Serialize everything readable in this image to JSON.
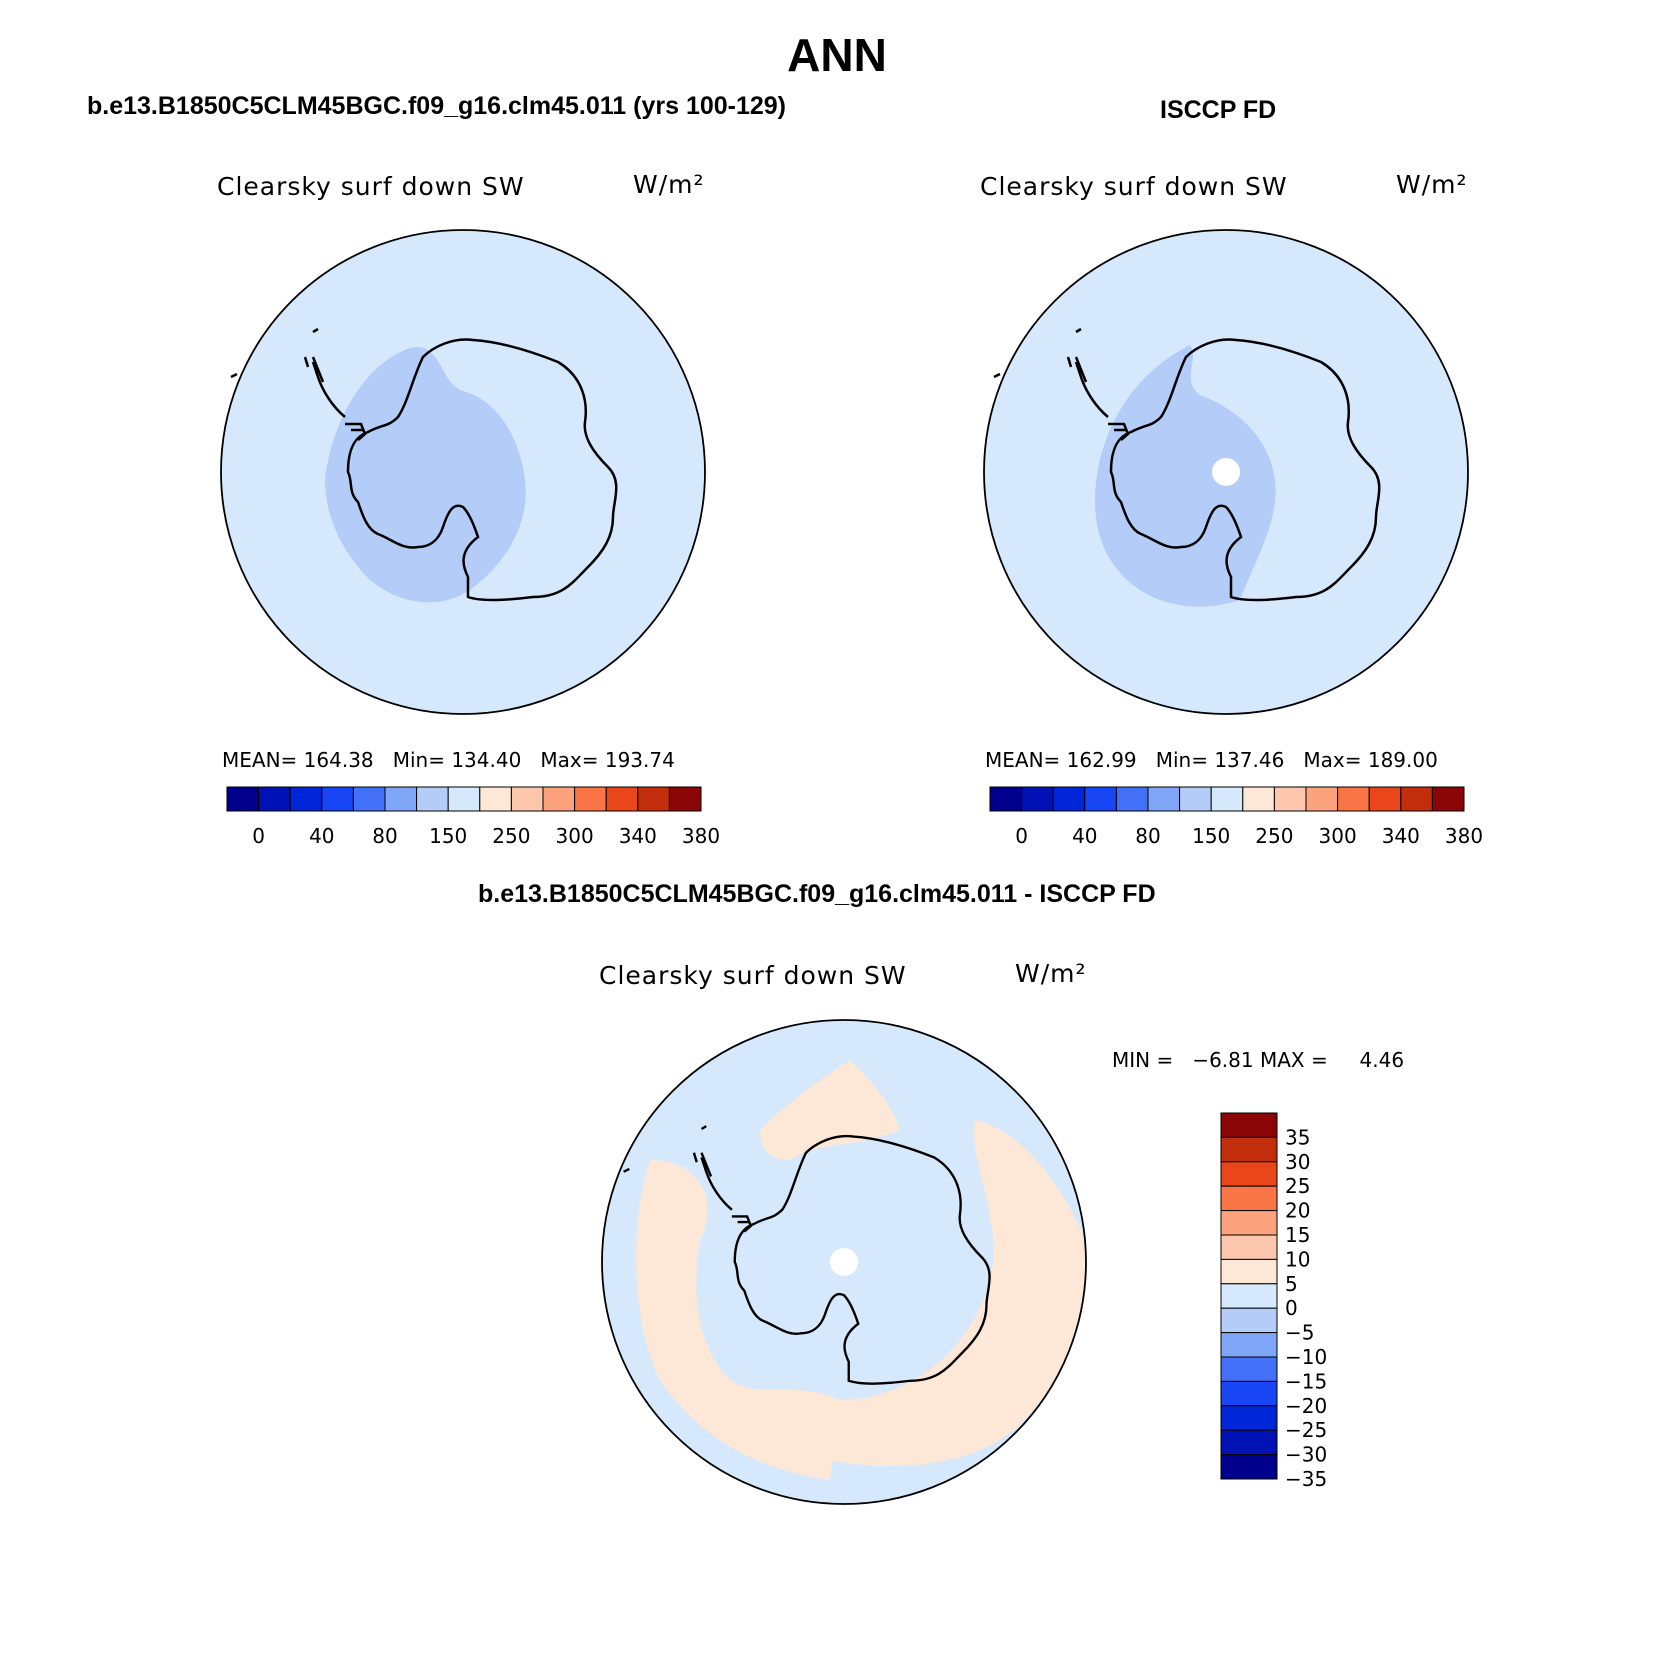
{
  "main_title": "ANN",
  "colors": {
    "ocean_light": "#d6e8fc",
    "land_mid": "#b3ccf8",
    "peach": "#fde7d6",
    "coast": "#000000"
  },
  "panels": {
    "model": {
      "case_title": "b.e13.B1850C5CLM45BGC.f09_g16.clm45.011 (yrs 100-129)",
      "var_name": "Clearsky surf down SW",
      "units": "W/m²",
      "stats": {
        "mean_label": "MEAN=",
        "mean": "164.38",
        "min_label": "Min=",
        "min": "134.40",
        "max_label": "Max=",
        "max": "193.74"
      }
    },
    "obs": {
      "case_title": "ISCCP FD",
      "var_name": "Clearsky surf down SW",
      "units": "W/m²",
      "stats": {
        "mean_label": "MEAN=",
        "mean": "162.99",
        "min_label": "Min=",
        "min": "137.46",
        "max_label": "Max=",
        "max": "189.00"
      }
    },
    "diff": {
      "case_title": "b.e13.B1850C5CLM45BGC.f09_g16.clm45.011 - ISCCP FD",
      "var_name": "Clearsky surf down SW",
      "units": "W/m²",
      "stats": {
        "min_label": "MIN =",
        "min": "−6.81",
        "max_label": "MAX =",
        "max": "4.46"
      }
    }
  },
  "colorbar_abs": {
    "colors": [
      "#00008c",
      "#0011b5",
      "#0026d9",
      "#1846f5",
      "#4270f7",
      "#7fa6f6",
      "#b3ccf8",
      "#d6e8fc",
      "#fde7d6",
      "#fcc7ac",
      "#fca27d",
      "#f97546",
      "#ea461b",
      "#c22d0c",
      "#8a0606"
    ],
    "labels": [
      "0",
      "40",
      "80",
      "150",
      "250",
      "300",
      "340",
      "380"
    ]
  },
  "colorbar_diff": {
    "colors": [
      "#00008c",
      "#0011b5",
      "#0026d9",
      "#1846f5",
      "#4270f7",
      "#7fa6f6",
      "#b3ccf8",
      "#d6e8fc",
      "#fde7d6",
      "#fcc7ac",
      "#fca27d",
      "#f97546",
      "#ea461b",
      "#c22d0c",
      "#8a0606"
    ],
    "labels": [
      "35",
      "30",
      "25",
      "20",
      "15",
      "10",
      "5",
      "0",
      "−5",
      "−10",
      "−15",
      "−20",
      "−25",
      "−30",
      "−35"
    ]
  }
}
